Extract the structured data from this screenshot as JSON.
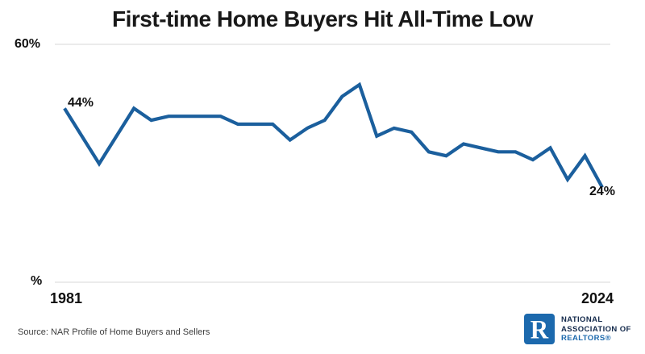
{
  "title": "First-time Home Buyers Hit All-Time Low",
  "axis": {
    "y_top_label": "60%",
    "y_bottom_label": "%",
    "x_start_label": "1981",
    "x_end_label": "2024"
  },
  "annotations": {
    "first_point_label": "44%",
    "last_point_label": "24%"
  },
  "source": "Source: NAR Profile of Home Buyers and Sellers",
  "logo": {
    "mark_letter": "R",
    "line1": "NATIONAL",
    "line2": "ASSOCIATION OF",
    "line3": "REALTORS®"
  },
  "colors": {
    "line": "#1b5f9d",
    "gridline": "#ebebeb",
    "title_text": "#191919",
    "logo_navy": "#13294b",
    "logo_blue": "#1c69ad",
    "background": "#ffffff"
  },
  "chart_data": {
    "type": "line",
    "title": "First-time Home Buyers Hit All-Time Low",
    "xlabel": "",
    "ylabel": "%",
    "ylim": [
      0,
      60
    ],
    "x_range_shown": [
      "1981",
      "2024"
    ],
    "grid": "top and bottom horizontal gridlines only",
    "legend": "none",
    "x": [
      1981,
      1985,
      1987,
      1989,
      1991,
      1993,
      1995,
      1997,
      1999,
      2001,
      2003,
      2004,
      2005,
      2006,
      2007,
      2008,
      2009,
      2010,
      2011,
      2012,
      2013,
      2014,
      2015,
      2016,
      2017,
      2018,
      2019,
      2020,
      2021,
      2022,
      2023,
      2024
    ],
    "values": [
      44,
      37,
      30,
      37,
      44,
      41,
      42,
      42,
      42,
      42,
      40,
      40,
      40,
      36,
      39,
      41,
      47,
      50,
      37,
      39,
      38,
      33,
      32,
      35,
      34,
      33,
      33,
      31,
      34,
      26,
      32,
      24
    ]
  }
}
